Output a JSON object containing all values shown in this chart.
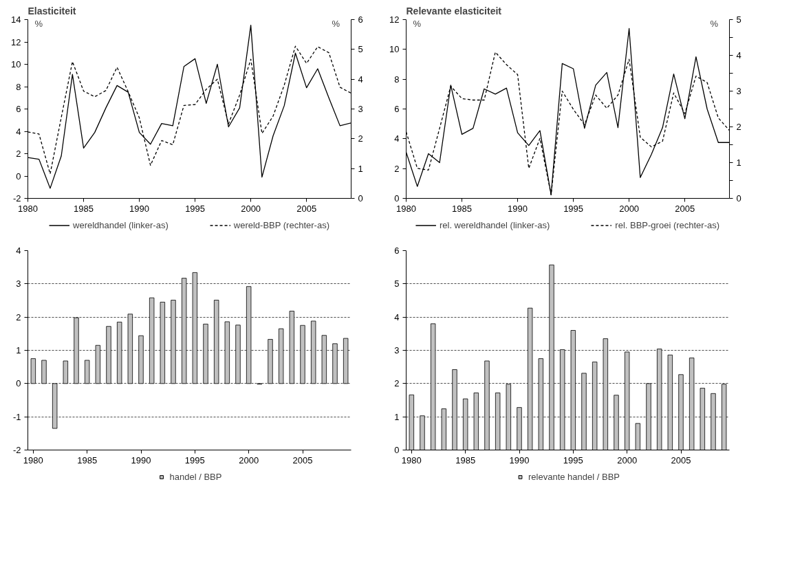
{
  "chart_data": [
    {
      "type": "line",
      "title": "Elasticiteit",
      "ylabel": "%",
      "y2label": "%",
      "x": [
        1980,
        1981,
        1982,
        1983,
        1984,
        1985,
        1986,
        1987,
        1988,
        1989,
        1990,
        1991,
        1992,
        1993,
        1994,
        1995,
        1996,
        1997,
        1998,
        1999,
        2000,
        2001,
        2002,
        2003,
        2004,
        2005,
        2006,
        2007,
        2008,
        2009
      ],
      "xlim": [
        1980,
        2009
      ],
      "xticks": [
        1980,
        1985,
        1990,
        1995,
        2000,
        2005
      ],
      "ylim": [
        -2,
        14
      ],
      "yticks": [
        -2,
        0,
        2,
        4,
        6,
        8,
        10,
        12,
        14
      ],
      "y2lim": [
        0,
        6
      ],
      "y2ticks": [
        0,
        1,
        2,
        3,
        4,
        5,
        6
      ],
      "grid": false,
      "legend": "bottom",
      "series": [
        {
          "name": "wereldhandel (linker-as)",
          "color": "#000000",
          "line_style": "solid",
          "values": [
            1.65,
            1.5,
            -1.1,
            1.8,
            9.1,
            2.5,
            3.9,
            6.1,
            8.1,
            7.5,
            3.9,
            2.85,
            4.7,
            4.5,
            9.8,
            10.5,
            6.5,
            10.0,
            4.4,
            6.1,
            13.5,
            -0.1,
            3.6,
            6.3,
            11.0,
            7.9,
            9.6,
            7.0,
            4.5,
            4.75
          ]
        },
        {
          "name": "wereld-BBP (rechter-as)",
          "color": "#000000",
          "line_style": "dashed",
          "axis": "y2",
          "values": [
            2.23,
            2.16,
            0.82,
            2.72,
            4.59,
            3.6,
            3.41,
            3.62,
            4.4,
            3.58,
            2.7,
            1.11,
            1.94,
            1.8,
            3.12,
            3.15,
            3.66,
            4.0,
            2.5,
            3.47,
            4.67,
            2.18,
            2.76,
            3.8,
            5.11,
            4.53,
            5.09,
            4.89,
            3.73,
            3.53
          ]
        }
      ]
    },
    {
      "type": "line",
      "title": "Relevante elasticiteit",
      "ylabel": "%",
      "y2label": "%",
      "x": [
        1980,
        1981,
        1982,
        1983,
        1984,
        1985,
        1986,
        1987,
        1988,
        1989,
        1990,
        1991,
        1992,
        1993,
        1994,
        1995,
        1996,
        1997,
        1998,
        1999,
        2000,
        2001,
        2002,
        2003,
        2004,
        2005,
        2006,
        2007,
        2008,
        2009
      ],
      "xlim": [
        1980,
        2009
      ],
      "xticks": [
        1980,
        1985,
        1990,
        1995,
        2000,
        2005
      ],
      "ylim": [
        0,
        12
      ],
      "yticks": [
        0,
        2,
        4,
        6,
        8,
        10,
        12
      ],
      "y2lim": [
        0,
        5
      ],
      "y2ticks": [
        0,
        {
          "value": 0.5,
          "label": null
        },
        1,
        {
          "value": 1.5,
          "label": null
        },
        2,
        {
          "value": 2.5,
          "label": null
        },
        3,
        {
          "value": 3.5,
          "label": null
        },
        4,
        {
          "value": 4.5,
          "label": null
        },
        5
      ],
      "grid": false,
      "legend": "bottom",
      "series": [
        {
          "name": "rel. wereldhandel (linker-as)",
          "color": "#000000",
          "line_style": "solid",
          "values": [
            3.1,
            0.8,
            3.0,
            2.4,
            7.6,
            4.3,
            4.7,
            7.35,
            7.0,
            7.4,
            4.4,
            3.55,
            4.55,
            0.25,
            9.05,
            8.7,
            4.7,
            7.6,
            8.45,
            4.75,
            11.4,
            1.4,
            2.95,
            4.75,
            8.35,
            5.35,
            9.5,
            6.0,
            3.75,
            3.75
          ]
        },
        {
          "name": "rel. BBP-groei (rechter-as)",
          "color": "#000000",
          "line_style": "dashed",
          "axis": "y2",
          "values": [
            1.86,
            0.84,
            0.79,
            1.96,
            3.14,
            2.79,
            2.75,
            2.75,
            4.09,
            3.74,
            3.46,
            0.84,
            1.68,
            0.1,
            3.0,
            2.49,
            2.06,
            2.89,
            2.52,
            2.89,
            3.89,
            1.71,
            1.44,
            1.6,
            2.95,
            2.37,
            3.42,
            3.24,
            2.25,
            1.9
          ]
        }
      ]
    },
    {
      "type": "bar",
      "x": [
        1980,
        1981,
        1982,
        1983,
        1984,
        1985,
        1986,
        1987,
        1988,
        1989,
        1990,
        1991,
        1992,
        1993,
        1994,
        1995,
        1996,
        1997,
        1998,
        1999,
        2000,
        2001,
        2002,
        2003,
        2004,
        2005,
        2006,
        2007,
        2008,
        2009
      ],
      "xlim": [
        1979.5,
        2009.5
      ],
      "xticks": [
        1980,
        1985,
        1990,
        1995,
        2000,
        2005
      ],
      "ylim": [
        -2,
        4
      ],
      "yticks": [
        -2,
        -1,
        0,
        1,
        2,
        3,
        4
      ],
      "grid": "y",
      "legend": "bottom",
      "series": [
        {
          "name": "handel / BBP",
          "color": "#c0c0c0",
          "values": [
            0.75,
            0.7,
            -1.35,
            0.68,
            1.98,
            0.7,
            1.15,
            1.72,
            1.85,
            2.09,
            1.44,
            2.58,
            2.45,
            2.51,
            3.17,
            3.34,
            1.79,
            2.51,
            1.86,
            1.76,
            2.92,
            -0.02,
            1.33,
            1.65,
            2.18,
            1.75,
            1.88,
            1.45,
            1.2,
            1.36
          ]
        }
      ]
    },
    {
      "type": "bar",
      "x": [
        1980,
        1981,
        1982,
        1983,
        1984,
        1985,
        1986,
        1987,
        1988,
        1989,
        1990,
        1991,
        1992,
        1993,
        1994,
        1995,
        1996,
        1997,
        1998,
        1999,
        2000,
        2001,
        2002,
        2003,
        2004,
        2005,
        2006,
        2007,
        2008,
        2009
      ],
      "xlim": [
        1979.5,
        2009.5
      ],
      "xticks": [
        1980,
        1985,
        1990,
        1995,
        2000,
        2005
      ],
      "ylim": [
        0,
        6
      ],
      "yticks": [
        0,
        1,
        2,
        3,
        4,
        5,
        6
      ],
      "grid": "y",
      "legend": "bottom",
      "series": [
        {
          "name": "relevante handel / BBP",
          "color": "#c0c0c0",
          "values": [
            1.66,
            1.03,
            3.8,
            1.24,
            2.42,
            1.54,
            1.72,
            2.68,
            1.72,
            1.98,
            1.28,
            4.27,
            2.75,
            5.57,
            3.02,
            3.6,
            2.31,
            2.65,
            3.35,
            1.65,
            2.95,
            0.8,
            2.0,
            3.04,
            2.86,
            2.27,
            2.77,
            1.86,
            1.7,
            1.98
          ]
        }
      ]
    }
  ]
}
